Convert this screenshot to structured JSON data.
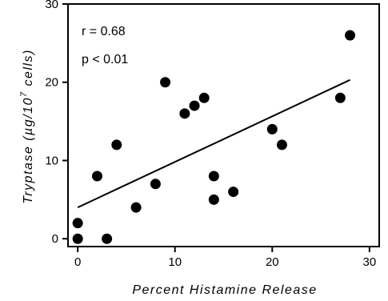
{
  "chart_data": {
    "type": "scatter",
    "xlabel": "Percent   Histamine   Release",
    "ylabel_main": "Tryptase (µg/10",
    "ylabel_sup": "7",
    "ylabel_tail": " cells)",
    "xlim": [
      -1,
      31
    ],
    "ylim": [
      -1,
      30
    ],
    "x_ticks": [
      0,
      10,
      20,
      30
    ],
    "y_ticks": [
      0,
      10,
      20,
      30
    ],
    "grid": false,
    "annotations": {
      "r": "r  =  0.68",
      "p": "p  <  0.01"
    },
    "points": [
      {
        "x": 0,
        "y": 2
      },
      {
        "x": 0,
        "y": 0
      },
      {
        "x": 2,
        "y": 8
      },
      {
        "x": 3,
        "y": 0
      },
      {
        "x": 4,
        "y": 12
      },
      {
        "x": 6,
        "y": 4
      },
      {
        "x": 8,
        "y": 7
      },
      {
        "x": 9,
        "y": 20
      },
      {
        "x": 11,
        "y": 16
      },
      {
        "x": 12,
        "y": 17
      },
      {
        "x": 13,
        "y": 18
      },
      {
        "x": 14,
        "y": 8
      },
      {
        "x": 14,
        "y": 5
      },
      {
        "x": 16,
        "y": 6
      },
      {
        "x": 20,
        "y": 14
      },
      {
        "x": 21,
        "y": 12
      },
      {
        "x": 27,
        "y": 18
      },
      {
        "x": 28,
        "y": 26
      }
    ],
    "regression_line": {
      "x1": 0,
      "y1": 4,
      "x2": 28,
      "y2": 20.3
    }
  }
}
